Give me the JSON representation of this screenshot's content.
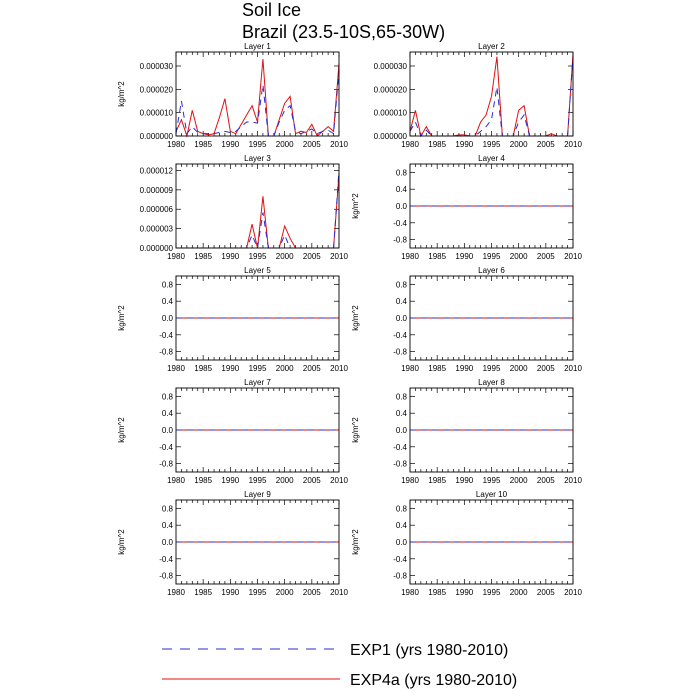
{
  "title": "Soil Ice",
  "subtitle": "Brazil (23.5-10S,65-30W)",
  "colors": {
    "exp1": "#2b2bd6",
    "exp4a": "#e01010",
    "axis": "#000000",
    "zero": "#000000"
  },
  "legend": {
    "items": [
      {
        "name": "EXP1 (yrs 1980-2010)",
        "style": "dashed",
        "color": "#2b2bd6"
      },
      {
        "name": "EXP4a (yrs 1980-2010)",
        "style": "solid",
        "color": "#e01010"
      }
    ]
  },
  "chart_data": [
    {
      "type": "line",
      "panel_title": "Layer 1",
      "ylabel": "kg/m^2",
      "xlim": [
        1980,
        2010
      ],
      "ylim": [
        0,
        3.6e-05
      ],
      "xticks": [
        "1980",
        "1985",
        "1990",
        "1995",
        "2000",
        "2005",
        "2010"
      ],
      "yticks": [
        {
          "v": 0,
          "label": "0.000000"
        },
        {
          "v": 1e-05,
          "label": "0.000010"
        },
        {
          "v": 2e-05,
          "label": "0.000020"
        },
        {
          "v": 3e-05,
          "label": "0.000030"
        }
      ],
      "x": [
        1980,
        1981,
        1982,
        1983,
        1984,
        1985,
        1986,
        1987,
        1988,
        1989,
        1990,
        1991,
        1992,
        1993,
        1994,
        1995,
        1996,
        1997,
        1998,
        1999,
        2000,
        2001,
        2002,
        2003,
        2004,
        2005,
        2006,
        2007,
        2008,
        2009,
        2010
      ],
      "series": [
        {
          "name": "EXP1 (yrs 1980-2010)",
          "values": [
            1e-06,
            1.5e-05,
            1e-06,
            4e-06,
            1.5e-06,
            1e-06,
            1e-06,
            1e-06,
            1.5e-06,
            2e-06,
            1.5e-06,
            2e-06,
            4e-06,
            6e-06,
            6e-06,
            5.5e-06,
            2.2e-05,
            0,
            0,
            6e-06,
            1.1e-05,
            1.3e-05,
            2e-06,
            1e-06,
            2e-06,
            3e-06,
            1e-06,
            2e-06,
            2.5e-06,
            1e-06,
            2.8e-05
          ]
        },
        {
          "name": "EXP4a (yrs 1980-2010)",
          "values": [
            2e-06,
            7e-06,
            0,
            1.1e-05,
            2e-06,
            1e-06,
            5e-07,
            1e-06,
            8e-06,
            1.6e-05,
            2e-06,
            1e-06,
            5e-06,
            9e-06,
            1.3e-05,
            6e-06,
            3.3e-05,
            0,
            0,
            7e-06,
            1.4e-05,
            1.7e-05,
            1e-06,
            2e-06,
            1.5e-06,
            5e-06,
            0,
            2e-06,
            4e-06,
            2e-06,
            3.1e-05
          ]
        }
      ]
    },
    {
      "type": "line",
      "panel_title": "Layer 2",
      "ylabel": "",
      "xlim": [
        1980,
        2010
      ],
      "ylim": [
        0,
        3.6e-05
      ],
      "xticks": [
        "1980",
        "1985",
        "1990",
        "1995",
        "2000",
        "2005",
        "2010"
      ],
      "yticks": [
        {
          "v": 0,
          "label": "0.000000"
        },
        {
          "v": 1e-05,
          "label": "0.000010"
        },
        {
          "v": 2e-05,
          "label": "0.000020"
        },
        {
          "v": 3e-05,
          "label": "0.000030"
        }
      ],
      "x": [
        1980,
        1981,
        1982,
        1983,
        1984,
        1985,
        1986,
        1987,
        1988,
        1989,
        1990,
        1991,
        1992,
        1993,
        1994,
        1995,
        1996,
        1997,
        1998,
        1999,
        2000,
        2001,
        2002,
        2003,
        2004,
        2005,
        2006,
        2007,
        2008,
        2009,
        2010
      ],
      "series": [
        {
          "name": "EXP1 (yrs 1980-2010)",
          "values": [
            2e-06,
            6e-06,
            0,
            2.5e-06,
            0,
            0,
            0,
            0,
            0,
            0,
            0,
            0,
            0,
            2e-06,
            4e-06,
            7e-06,
            2.1e-05,
            0,
            0,
            0,
            6e-06,
            9e-06,
            0,
            0,
            0,
            0,
            0,
            0,
            0,
            0,
            3.4e-05
          ]
        },
        {
          "name": "EXP4a (yrs 1980-2010)",
          "values": [
            2e-06,
            1.1e-05,
            0,
            4e-06,
            0,
            0,
            0,
            0,
            0,
            5e-07,
            5e-07,
            0,
            0,
            6e-06,
            9e-06,
            1.7e-05,
            3.4e-05,
            0,
            0,
            0,
            1.1e-05,
            1.3e-05,
            0,
            0,
            0,
            0,
            1e-06,
            0,
            0,
            0,
            3.5e-05
          ]
        }
      ]
    },
    {
      "type": "line",
      "panel_title": "Layer 3",
      "ylabel": "",
      "xlim": [
        1980,
        2010
      ],
      "ylim": [
        0,
        1.3e-05
      ],
      "xticks": [
        "1980",
        "1985",
        "1990",
        "1995",
        "2000",
        "2005",
        "2010"
      ],
      "yticks": [
        {
          "v": 0,
          "label": "0.000000"
        },
        {
          "v": 3e-06,
          "label": "0.000003"
        },
        {
          "v": 6e-06,
          "label": "0.000006"
        },
        {
          "v": 9e-06,
          "label": "0.000009"
        },
        {
          "v": 1.2e-05,
          "label": "0.000012"
        }
      ],
      "x": [
        1980,
        1981,
        1982,
        1983,
        1984,
        1985,
        1986,
        1987,
        1988,
        1989,
        1990,
        1991,
        1992,
        1993,
        1994,
        1995,
        1996,
        1997,
        1998,
        1999,
        2000,
        2001,
        2002,
        2003,
        2004,
        2005,
        2006,
        2007,
        2008,
        2009,
        2010
      ],
      "series": [
        {
          "name": "EXP1 (yrs 1980-2010)",
          "values": [
            0,
            0,
            0,
            0,
            0,
            0,
            0,
            0,
            0,
            0,
            0,
            0,
            0,
            0,
            2e-06,
            0,
            5.5e-06,
            0,
            0,
            0,
            2e-06,
            0,
            0,
            0,
            0,
            0,
            0,
            0,
            0,
            0,
            1.2e-05
          ]
        },
        {
          "name": "EXP4a (yrs 1980-2010)",
          "values": [
            0,
            0,
            0,
            0,
            0,
            0,
            0,
            0,
            0,
            0,
            0,
            0,
            0,
            0,
            3.7e-06,
            0,
            8e-06,
            0,
            0,
            0,
            3.4e-06,
            1.5e-06,
            0,
            0,
            0,
            0,
            0,
            0,
            0,
            0,
            1.15e-05
          ]
        }
      ]
    },
    {
      "type": "line",
      "panel_title": "Layer 4",
      "ylabel": "kg/m^2",
      "xlim": [
        1980,
        2010
      ],
      "ylim": [
        -1,
        1
      ],
      "xticks": [
        "1980",
        "1985",
        "1990",
        "1995",
        "2000",
        "2005",
        "2010"
      ],
      "yticks": [
        {
          "v": 0.8,
          "label": "0.8"
        },
        {
          "v": 0.4,
          "label": "0.4"
        },
        {
          "v": 0,
          "label": "0.0"
        },
        {
          "v": -0.4,
          "label": "-0.4"
        },
        {
          "v": -0.8,
          "label": "-0.8"
        }
      ],
      "x": [
        1980,
        2010
      ],
      "series": [
        {
          "name": "EXP1 (yrs 1980-2010)",
          "values": [
            0,
            0
          ]
        },
        {
          "name": "EXP4a (yrs 1980-2010)",
          "values": [
            0,
            0
          ]
        }
      ]
    },
    {
      "type": "line",
      "panel_title": "Layer 5",
      "ylabel": "kg/m^2",
      "xlim": [
        1980,
        2010
      ],
      "ylim": [
        -1,
        1
      ],
      "xticks": [
        "1980",
        "1985",
        "1990",
        "1995",
        "2000",
        "2005",
        "2010"
      ],
      "yticks": [
        {
          "v": 0.8,
          "label": "0.8"
        },
        {
          "v": 0.4,
          "label": "0.4"
        },
        {
          "v": 0,
          "label": "0.0"
        },
        {
          "v": -0.4,
          "label": "-0.4"
        },
        {
          "v": -0.8,
          "label": "-0.8"
        }
      ],
      "x": [
        1980,
        2010
      ],
      "series": [
        {
          "name": "EXP1 (yrs 1980-2010)",
          "values": [
            0,
            0
          ]
        },
        {
          "name": "EXP4a (yrs 1980-2010)",
          "values": [
            0,
            0
          ]
        }
      ]
    },
    {
      "type": "line",
      "panel_title": "Layer 6",
      "ylabel": "kg/m^2",
      "xlim": [
        1980,
        2010
      ],
      "ylim": [
        -1,
        1
      ],
      "xticks": [
        "1980",
        "1985",
        "1990",
        "1995",
        "2000",
        "2005",
        "2010"
      ],
      "yticks": [
        {
          "v": 0.8,
          "label": "0.8"
        },
        {
          "v": 0.4,
          "label": "0.4"
        },
        {
          "v": 0,
          "label": "0.0"
        },
        {
          "v": -0.4,
          "label": "-0.4"
        },
        {
          "v": -0.8,
          "label": "-0.8"
        }
      ],
      "x": [
        1980,
        2010
      ],
      "series": [
        {
          "name": "EXP1 (yrs 1980-2010)",
          "values": [
            0,
            0
          ]
        },
        {
          "name": "EXP4a (yrs 1980-2010)",
          "values": [
            0,
            0
          ]
        }
      ]
    },
    {
      "type": "line",
      "panel_title": "Layer 7",
      "ylabel": "kg/m^2",
      "xlim": [
        1980,
        2010
      ],
      "ylim": [
        -1,
        1
      ],
      "xticks": [
        "1980",
        "1985",
        "1990",
        "1995",
        "2000",
        "2005",
        "2010"
      ],
      "yticks": [
        {
          "v": 0.8,
          "label": "0.8"
        },
        {
          "v": 0.4,
          "label": "0.4"
        },
        {
          "v": 0,
          "label": "0.0"
        },
        {
          "v": -0.4,
          "label": "-0.4"
        },
        {
          "v": -0.8,
          "label": "-0.8"
        }
      ],
      "x": [
        1980,
        2010
      ],
      "series": [
        {
          "name": "EXP1 (yrs 1980-2010)",
          "values": [
            0,
            0
          ]
        },
        {
          "name": "EXP4a (yrs 1980-2010)",
          "values": [
            0,
            0
          ]
        }
      ]
    },
    {
      "type": "line",
      "panel_title": "Layer 8",
      "ylabel": "kg/m^2",
      "xlim": [
        1980,
        2010
      ],
      "ylim": [
        -1,
        1
      ],
      "xticks": [
        "1980",
        "1985",
        "1990",
        "1995",
        "2000",
        "2005",
        "2010"
      ],
      "yticks": [
        {
          "v": 0.8,
          "label": "0.8"
        },
        {
          "v": 0.4,
          "label": "0.4"
        },
        {
          "v": 0,
          "label": "0.0"
        },
        {
          "v": -0.4,
          "label": "-0.4"
        },
        {
          "v": -0.8,
          "label": "-0.8"
        }
      ],
      "x": [
        1980,
        2010
      ],
      "series": [
        {
          "name": "EXP1 (yrs 1980-2010)",
          "values": [
            0,
            0
          ]
        },
        {
          "name": "EXP4a (yrs 1980-2010)",
          "values": [
            0,
            0
          ]
        }
      ]
    },
    {
      "type": "line",
      "panel_title": "Layer 9",
      "ylabel": "kg/m^2",
      "xlim": [
        1980,
        2010
      ],
      "ylim": [
        -1,
        1
      ],
      "xticks": [
        "1980",
        "1985",
        "1990",
        "1995",
        "2000",
        "2005",
        "2010"
      ],
      "yticks": [
        {
          "v": 0.8,
          "label": "0.8"
        },
        {
          "v": 0.4,
          "label": "0.4"
        },
        {
          "v": 0,
          "label": "0.0"
        },
        {
          "v": -0.4,
          "label": "-0.4"
        },
        {
          "v": -0.8,
          "label": "-0.8"
        }
      ],
      "x": [
        1980,
        2010
      ],
      "series": [
        {
          "name": "EXP1 (yrs 1980-2010)",
          "values": [
            0,
            0
          ]
        },
        {
          "name": "EXP4a (yrs 1980-2010)",
          "values": [
            0,
            0
          ]
        }
      ]
    },
    {
      "type": "line",
      "panel_title": "Layer 10",
      "ylabel": "kg/m^2",
      "xlim": [
        1980,
        2010
      ],
      "ylim": [
        -1,
        1
      ],
      "xticks": [
        "1980",
        "1985",
        "1990",
        "1995",
        "2000",
        "2005",
        "2010"
      ],
      "yticks": [
        {
          "v": 0.8,
          "label": "0.8"
        },
        {
          "v": 0.4,
          "label": "0.4"
        },
        {
          "v": 0,
          "label": "0.0"
        },
        {
          "v": -0.4,
          "label": "-0.4"
        },
        {
          "v": -0.8,
          "label": "-0.8"
        }
      ],
      "x": [
        1980,
        2010
      ],
      "series": [
        {
          "name": "EXP1 (yrs 1980-2010)",
          "values": [
            0,
            0
          ]
        },
        {
          "name": "EXP4a (yrs 1980-2010)",
          "values": [
            0,
            0
          ]
        }
      ]
    }
  ]
}
